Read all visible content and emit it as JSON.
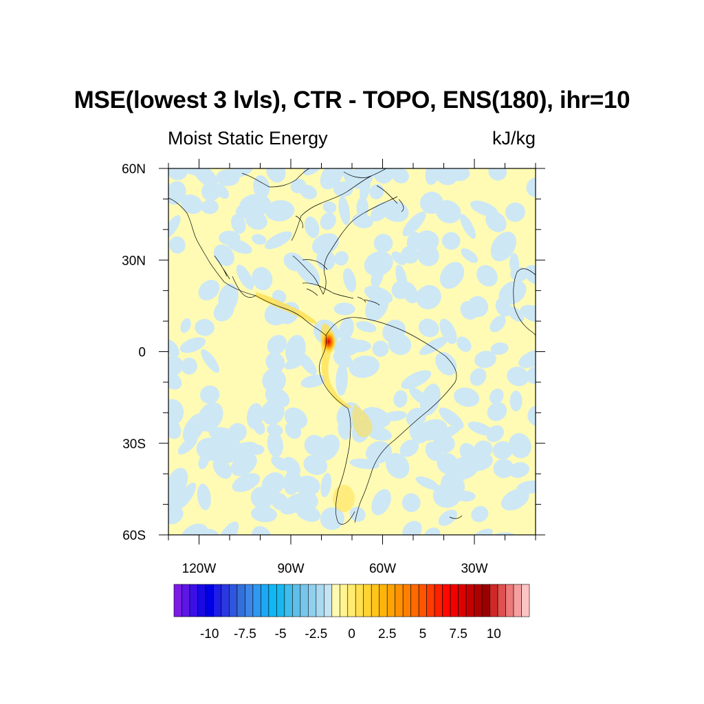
{
  "title": "MSE(lowest 3 lvls), CTR - TOPO, ENS(180), ihr=10",
  "left_subtitle": "Moist Static Energy",
  "right_subtitle": "kJ/kg",
  "lat_labels": [
    "60N",
    "30N",
    "0",
    "30S",
    "60S"
  ],
  "lat_values": [
    60,
    30,
    0,
    -30,
    -60
  ],
  "lon_labels": [
    "120W",
    "90W",
    "60W",
    "30W"
  ],
  "lon_values": [
    -120,
    -90,
    -60,
    -30
  ],
  "extent": {
    "lon_min": -130,
    "lon_max": -10,
    "lat_min": -60,
    "lat_max": 60
  },
  "colorbar": {
    "labels": [
      "-10",
      "-7.5",
      "-5",
      "-2.5",
      "0",
      "2.5",
      "5",
      "7.5",
      "10"
    ],
    "label_values": [
      -10,
      -7.5,
      -5,
      -2.5,
      0,
      2.5,
      5,
      7.5,
      10
    ],
    "min": -12.5,
    "max": 12.5,
    "step": 0.5,
    "colors": [
      "#7a1be6",
      "#5c16e6",
      "#3c0fe6",
      "#1a08e6",
      "#0000e6",
      "#1e1ee6",
      "#2a3ae0",
      "#2f56dc",
      "#3370da",
      "#3c86e8",
      "#2f98f0",
      "#1da8f5",
      "#0fb8f5",
      "#18b8ee",
      "#40bdea",
      "#5fbfe8",
      "#78c6ea",
      "#90d0ee",
      "#aad9f0",
      "#c4e4f4",
      "#fffab0",
      "#fff490",
      "#ffeb70",
      "#ffe050",
      "#ffd332",
      "#ffc41a",
      "#ffb40c",
      "#ffa305",
      "#ff9102",
      "#ff7f00",
      "#ff6a00",
      "#ff5400",
      "#ff3b00",
      "#ff2000",
      "#ff0800",
      "#f20000",
      "#dc0000",
      "#c40000",
      "#ad0000",
      "#9a0000",
      "#d02828",
      "#e05050",
      "#ec7a7a",
      "#f5a0a0",
      "#fcc4c4"
    ]
  },
  "field": {
    "positive_color": "#fffbb4",
    "negative_color": "#cde7f5",
    "hotspot_peak": 11,
    "hotspot_lat": 3,
    "hotspot_lon": -77
  }
}
